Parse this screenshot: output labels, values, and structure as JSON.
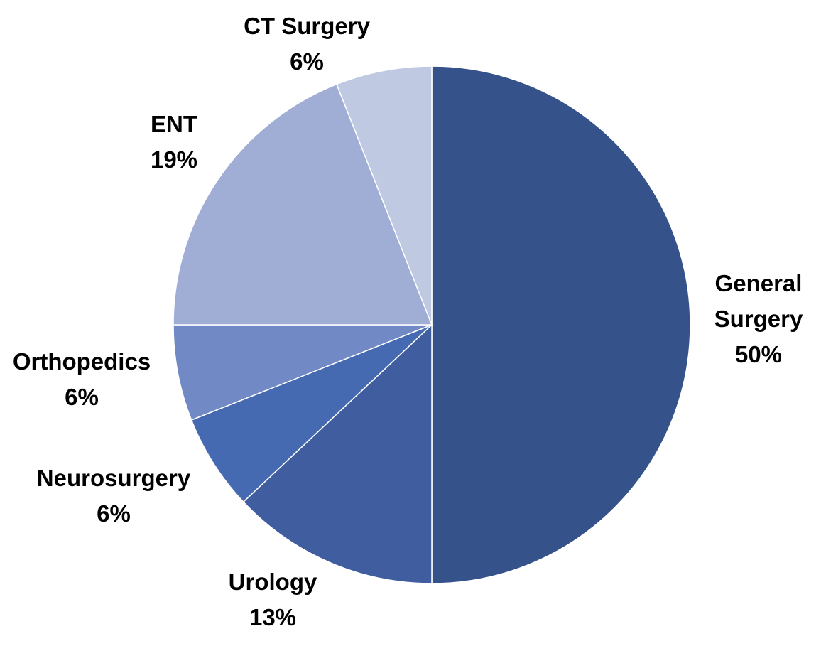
{
  "chart_data": {
    "type": "pie",
    "title": "",
    "start": "12 o'clock",
    "direction": "clockwise",
    "series": [
      {
        "values": [
          50,
          13,
          6,
          6,
          19,
          6
        ]
      }
    ],
    "categories": [
      "General Surgery",
      "Urology",
      "Neurosurgery",
      "Orthopedics",
      "ENT",
      "CT Surgery"
    ],
    "slices": [
      {
        "category": "General Surgery",
        "label_lines": [
          "General",
          "Surgery"
        ],
        "value": 50,
        "percent_label": "50%",
        "color": "#35528A"
      },
      {
        "category": "Urology",
        "label_lines": [
          "Urology"
        ],
        "value": 13,
        "percent_label": "13%",
        "color": "#405E9F"
      },
      {
        "category": "Neurosurgery",
        "label_lines": [
          "Neurosurgery"
        ],
        "value": 6,
        "percent_label": "6%",
        "color": "#456AB2"
      },
      {
        "category": "Orthopedics",
        "label_lines": [
          "Orthopedics"
        ],
        "value": 6,
        "percent_label": "6%",
        "color": "#7189C4"
      },
      {
        "category": "ENT",
        "label_lines": [
          "ENT"
        ],
        "value": 19,
        "percent_label": "19%",
        "color": "#A0AED6"
      },
      {
        "category": "CT Surgery",
        "label_lines": [
          "CT Surgery"
        ],
        "value": 6,
        "percent_label": "6%",
        "color": "#BFC9E2"
      }
    ],
    "legend": "none",
    "data_labels": "outside"
  }
}
